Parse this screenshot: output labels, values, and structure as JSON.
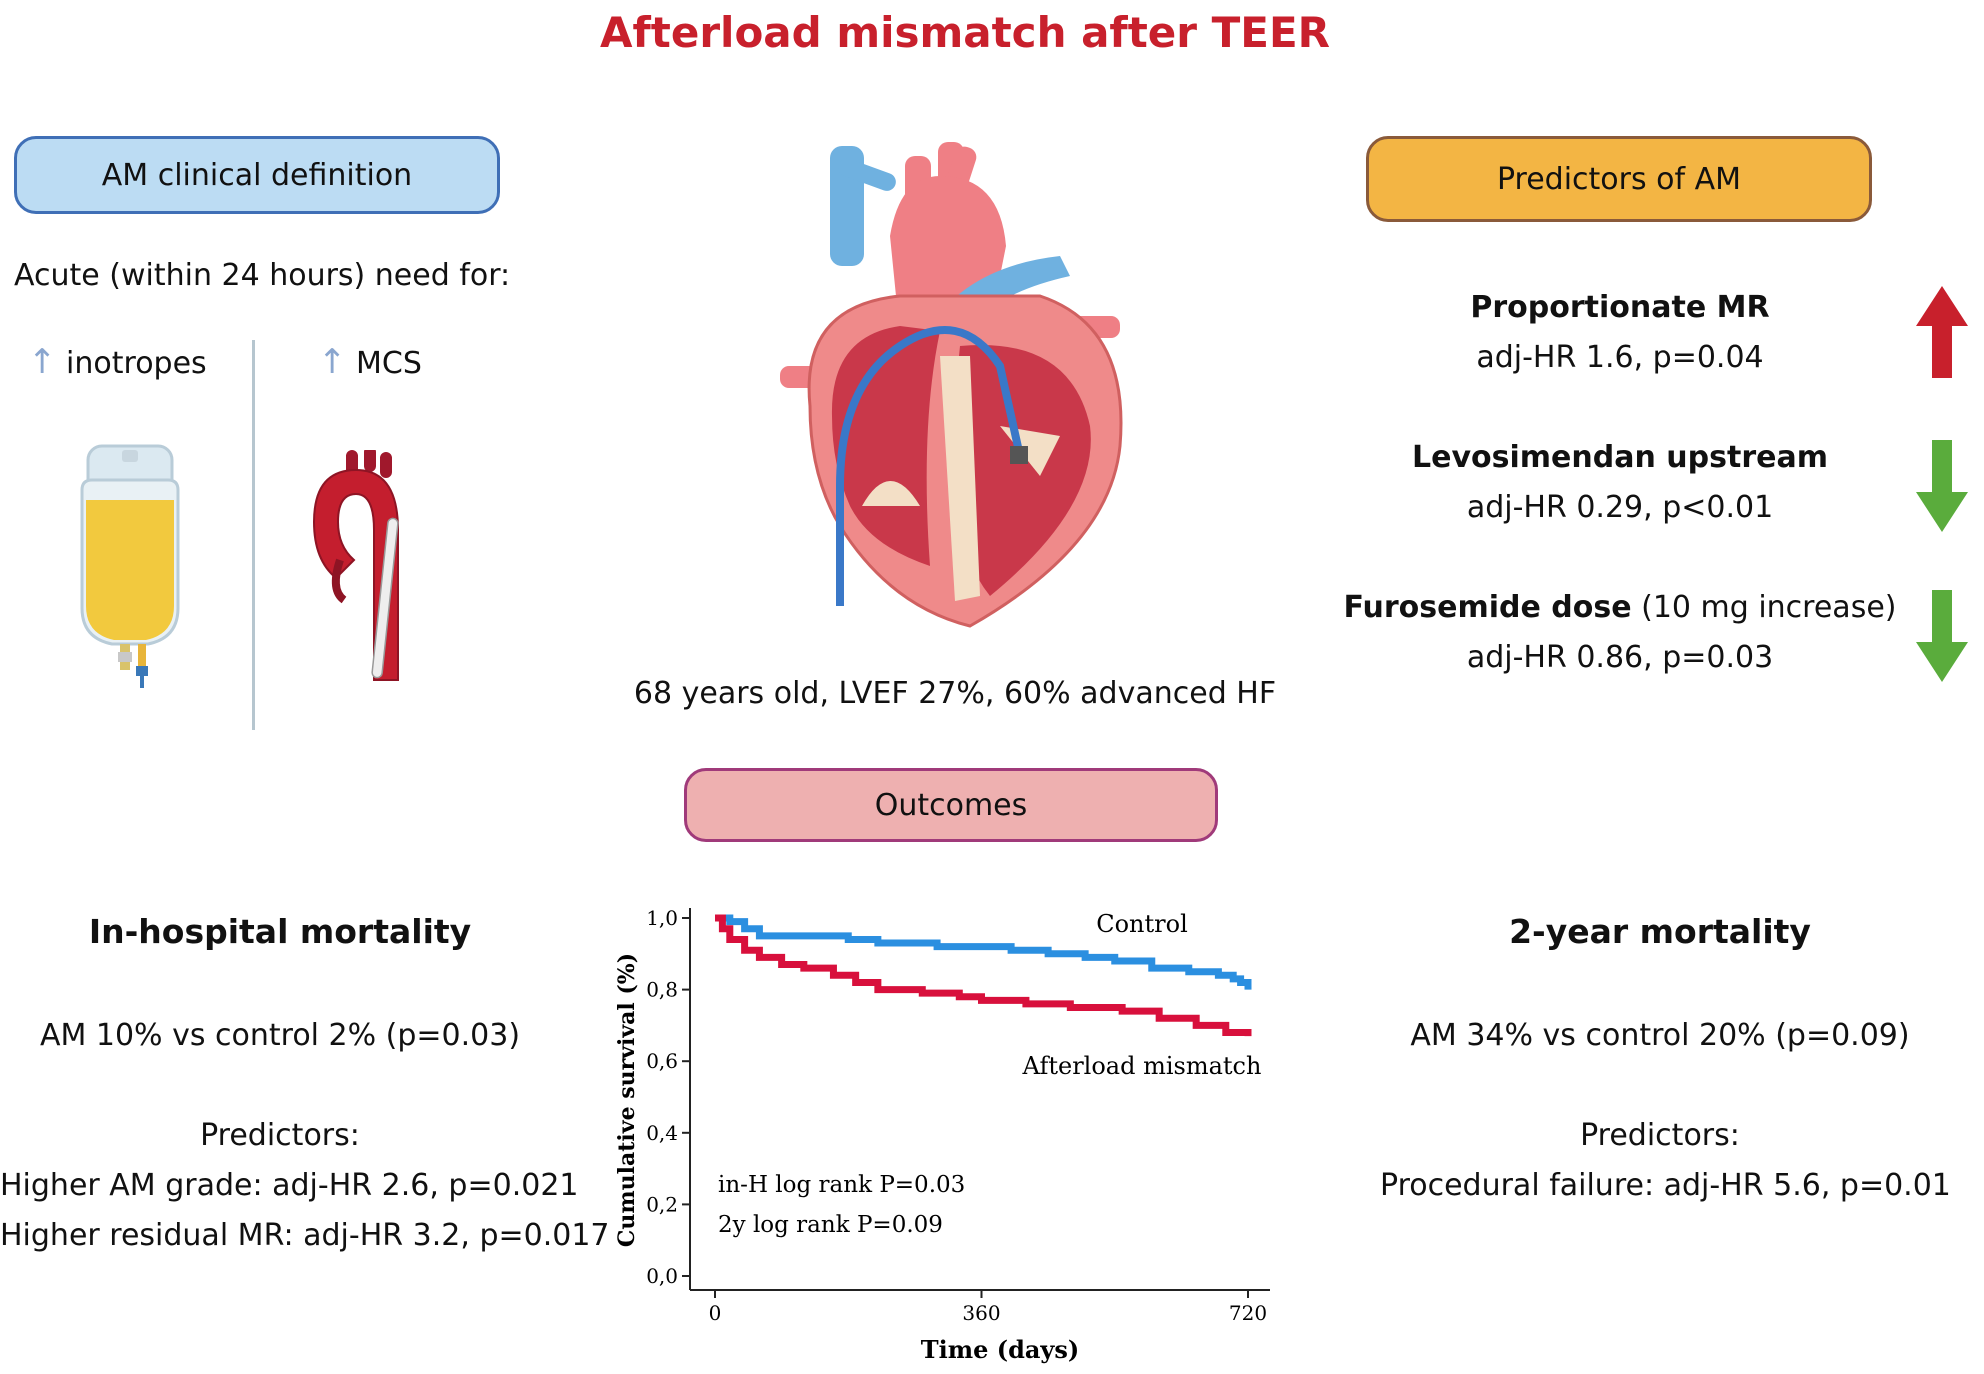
{
  "title": "Afterload mismatch after TEER",
  "definition": {
    "header": "AM clinical definition",
    "intro": "Acute (within 24 hours) need for:",
    "item1": "inotropes",
    "item2": "MCS",
    "arrow": "↑"
  },
  "patient": {
    "summary": "68 years old, LVEF 27%, 60% advanced HF"
  },
  "predictors": {
    "header": "Predictors of AM",
    "items": [
      {
        "name": "Proportionate MR",
        "extra": "",
        "stat": "adj-HR 1.6, p=0.04",
        "direction": "up",
        "color": "#c8202c"
      },
      {
        "name": "Levosimendan upstream",
        "extra": "",
        "stat": "adj-HR 0.29, p<0.01",
        "direction": "down",
        "color": "#5aac3c"
      },
      {
        "name": "Furosemide dose",
        "extra": " (10 mg increase)",
        "stat": "adj-HR 0.86, p=0.03",
        "direction": "down",
        "color": "#5aac3c"
      }
    ]
  },
  "outcomes": {
    "header": "Outcomes",
    "in_hospital": {
      "title": "In-hospital mortality",
      "result": "AM 10% vs control 2% (p=0.03)",
      "predictors_label": "Predictors:",
      "predictor1": "Higher AM grade: adj-HR 2.6, p=0.021",
      "predictor2": "Higher residual MR: adj-HR 3.2, p=0.017"
    },
    "two_year": {
      "title": "2-year mortality",
      "result": "AM 34% vs control 20% (p=0.09)",
      "predictors_label": "Predictors:",
      "predictor1": "Procedural failure: adj-HR 5.6, p=0.01"
    }
  },
  "chart_data": {
    "type": "line",
    "xlabel": "Time (days)",
    "ylabel": "Cumulative survival (%)",
    "xlim": [
      0,
      720
    ],
    "ylim": [
      0,
      1.0
    ],
    "x_ticks": [
      "0",
      "360",
      "720"
    ],
    "y_ticks": [
      "0,0",
      "0,2",
      "0,4",
      "0,6",
      "0,8",
      "1,0"
    ],
    "annotations": [
      "in-H log rank P=0.03",
      "2y log rank P=0.09"
    ],
    "series": [
      {
        "name": "Control",
        "color": "#2b8fe0",
        "x": [
          0,
          20,
          40,
          60,
          180,
          220,
          300,
          400,
          450,
          500,
          540,
          590,
          640,
          680,
          700,
          710,
          720
        ],
        "y": [
          1.0,
          0.99,
          0.97,
          0.95,
          0.94,
          0.93,
          0.92,
          0.91,
          0.9,
          0.89,
          0.88,
          0.86,
          0.85,
          0.84,
          0.83,
          0.82,
          0.8
        ]
      },
      {
        "name": "Afterload mismatch",
        "color": "#d8103c",
        "x": [
          0,
          10,
          20,
          40,
          60,
          90,
          120,
          160,
          190,
          220,
          280,
          330,
          360,
          420,
          480,
          550,
          600,
          650,
          690,
          720
        ],
        "y": [
          1.0,
          0.97,
          0.94,
          0.91,
          0.89,
          0.87,
          0.86,
          0.84,
          0.82,
          0.8,
          0.79,
          0.78,
          0.77,
          0.76,
          0.75,
          0.74,
          0.72,
          0.7,
          0.68,
          0.67
        ]
      }
    ]
  }
}
